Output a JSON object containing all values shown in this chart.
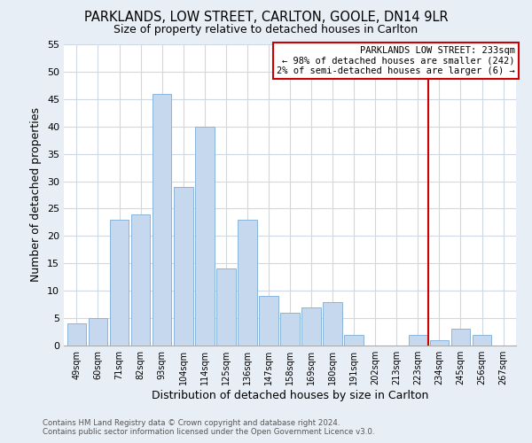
{
  "title": "PARKLANDS, LOW STREET, CARLTON, GOOLE, DN14 9LR",
  "subtitle": "Size of property relative to detached houses in Carlton",
  "xlabel": "Distribution of detached houses by size in Carlton",
  "ylabel": "Number of detached properties",
  "bar_labels": [
    "49sqm",
    "60sqm",
    "71sqm",
    "82sqm",
    "93sqm",
    "104sqm",
    "114sqm",
    "125sqm",
    "136sqm",
    "147sqm",
    "158sqm",
    "169sqm",
    "180sqm",
    "191sqm",
    "202sqm",
    "213sqm",
    "223sqm",
    "234sqm",
    "245sqm",
    "256sqm",
    "267sqm"
  ],
  "bar_values": [
    4,
    5,
    23,
    24,
    46,
    29,
    40,
    14,
    23,
    9,
    6,
    7,
    8,
    2,
    0,
    0,
    2,
    1,
    3,
    2,
    0
  ],
  "bar_color": "#c5d8ee",
  "bar_edge_color": "#89b4d9",
  "vline_x_index": 17,
  "vline_color": "#cc0000",
  "annotation_title": "PARKLANDS LOW STREET: 233sqm",
  "annotation_line1": "← 98% of detached houses are smaller (242)",
  "annotation_line2": "2% of semi-detached houses are larger (6) →",
  "ylim": [
    0,
    55
  ],
  "yticks": [
    0,
    5,
    10,
    15,
    20,
    25,
    30,
    35,
    40,
    45,
    50,
    55
  ],
  "footer1": "Contains HM Land Registry data © Crown copyright and database right 2024.",
  "footer2": "Contains public sector information licensed under the Open Government Licence v3.0.",
  "outer_bg": "#e8eef5",
  "plot_bg": "#ffffff",
  "grid_color": "#d0d8e4"
}
